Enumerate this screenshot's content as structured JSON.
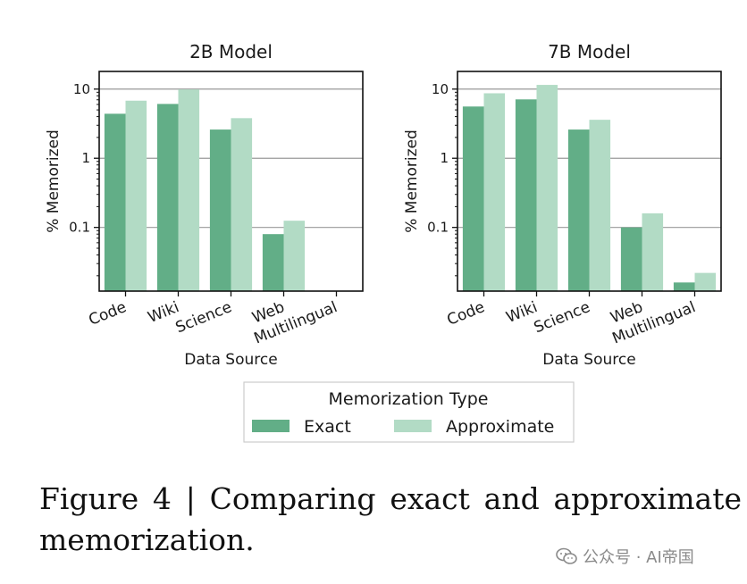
{
  "chart_data": [
    {
      "type": "bar",
      "title": "2B Model",
      "xlabel": "Data Source",
      "ylabel": "% Memorized",
      "yscale": "log",
      "ylim": [
        0.012,
        18
      ],
      "yticks": [
        0.1,
        1,
        10
      ],
      "ytick_labels": [
        "0.1",
        "1",
        "10"
      ],
      "grid": "horizontal",
      "categories": [
        "Code",
        "Wiki",
        "Science",
        "Web",
        "Multilingual"
      ],
      "series": [
        {
          "name": "Exact",
          "color": "#62ae87",
          "values": [
            4.4,
            6.1,
            2.6,
            0.08,
            null
          ]
        },
        {
          "name": "Approximate",
          "color": "#b2dbc5",
          "values": [
            6.8,
            9.9,
            3.8,
            0.125,
            null
          ]
        }
      ]
    },
    {
      "type": "bar",
      "title": "7B Model",
      "xlabel": "Data Source",
      "ylabel": "% Memorized",
      "yscale": "log",
      "ylim": [
        0.012,
        18
      ],
      "yticks": [
        0.1,
        1,
        10
      ],
      "ytick_labels": [
        "0.1",
        "1",
        "10"
      ],
      "grid": "horizontal",
      "categories": [
        "Code",
        "Wiki",
        "Science",
        "Web",
        "Multilingual"
      ],
      "series": [
        {
          "name": "Exact",
          "color": "#62ae87",
          "values": [
            5.6,
            7.1,
            2.6,
            0.1,
            0.016
          ]
        },
        {
          "name": "Approximate",
          "color": "#b2dbc5",
          "values": [
            8.7,
            11.5,
            3.6,
            0.16,
            0.022
          ]
        }
      ]
    }
  ],
  "legend": {
    "title": "Memorization Type",
    "placement": "bottom-center",
    "items": [
      {
        "label": "Exact",
        "color": "#62ae87"
      },
      {
        "label": "Approximate",
        "color": "#b2dbc5"
      }
    ]
  },
  "caption": "Figure 4 | Comparing exact and approximate memorization.",
  "watermark": {
    "text": "公众号 · AI帝国",
    "icon": "wechat-icon"
  }
}
